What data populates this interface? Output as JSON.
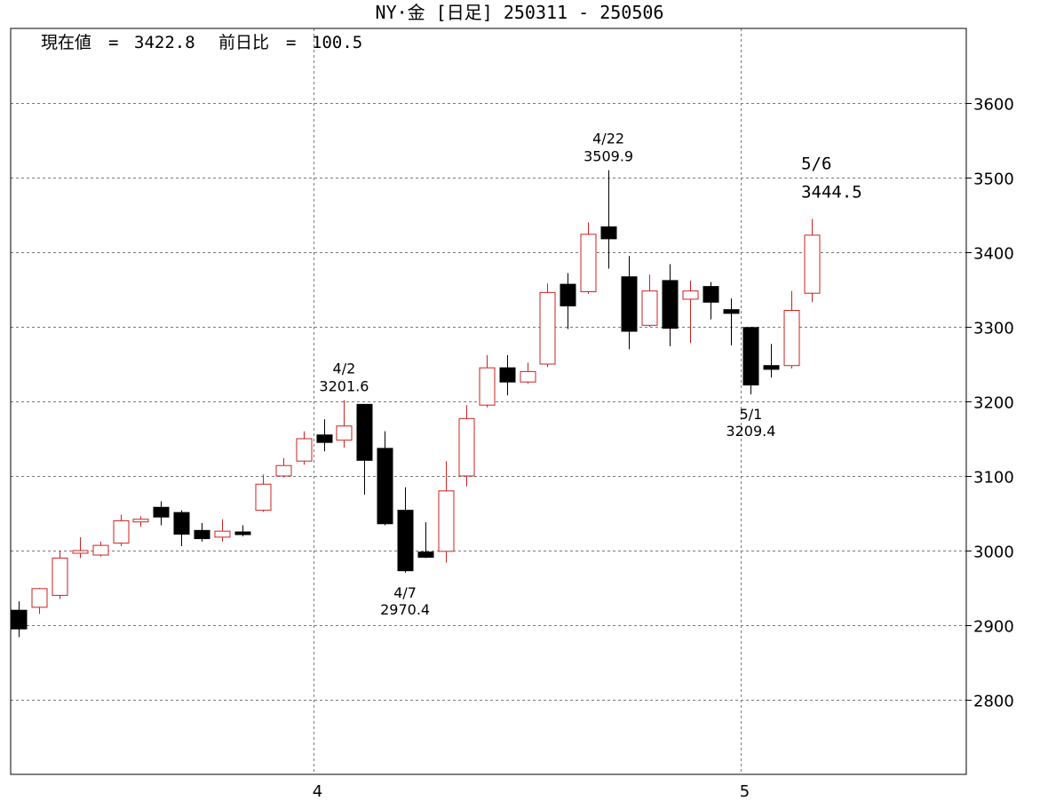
{
  "title": "NY·金 [日足] 250311 - 250506",
  "info": {
    "current_label": "現在値",
    "current_value": "3422.8",
    "change_label": "前日比",
    "change_value": "100.5"
  },
  "colors": {
    "up": "#cc2222",
    "down": "#000000",
    "grid": "#7a7a7a",
    "frame": "#000000"
  },
  "chart_data": {
    "type": "candlestick",
    "ylim": [
      2700,
      3700
    ],
    "y_ticks": [
      2800,
      2900,
      3000,
      3100,
      3200,
      3300,
      3400,
      3500,
      3600
    ],
    "x_tick_labels": [
      {
        "label": "4",
        "index": 15
      },
      {
        "label": "5",
        "index": 36
      }
    ],
    "candles": [
      {
        "o": 2920,
        "h": 2932,
        "l": 2884,
        "c": 2895
      },
      {
        "o": 2924,
        "h": 2950,
        "l": 2915,
        "c": 2949
      },
      {
        "o": 2940,
        "h": 3000,
        "l": 2935,
        "c": 2990
      },
      {
        "o": 2998,
        "h": 3018,
        "l": 2990,
        "c": 3000
      },
      {
        "o": 2994,
        "h": 3012,
        "l": 2992,
        "c": 3007
      },
      {
        "o": 3010,
        "h": 3048,
        "l": 3006,
        "c": 3040
      },
      {
        "o": 3040,
        "h": 3046,
        "l": 3032,
        "c": 3042
      },
      {
        "o": 3058,
        "h": 3066,
        "l": 3034,
        "c": 3045
      },
      {
        "o": 3051,
        "h": 3054,
        "l": 3006,
        "c": 3022
      },
      {
        "o": 3027,
        "h": 3037,
        "l": 3012,
        "c": 3016
      },
      {
        "o": 3018,
        "h": 3042,
        "l": 3012,
        "c": 3026
      },
      {
        "o": 3025,
        "h": 3034,
        "l": 3019,
        "c": 3023
      },
      {
        "o": 3054,
        "h": 3102,
        "l": 3052,
        "c": 3089
      },
      {
        "o": 3100,
        "h": 3124,
        "l": 3098,
        "c": 3114
      },
      {
        "o": 3120,
        "h": 3160,
        "l": 3115,
        "c": 3150
      },
      {
        "o": 3155,
        "h": 3176,
        "l": 3133,
        "c": 3145
      },
      {
        "o": 3148,
        "h": 3201.6,
        "l": 3138,
        "c": 3167
      },
      {
        "o": 3196,
        "h": 3196,
        "l": 3075,
        "c": 3121
      },
      {
        "o": 3137,
        "h": 3160,
        "l": 3034,
        "c": 3036
      },
      {
        "o": 3054,
        "h": 3085,
        "l": 2970.4,
        "c": 2973
      },
      {
        "o": 2998,
        "h": 3038,
        "l": 2990,
        "c": 2991
      },
      {
        "o": 2999,
        "h": 3120,
        "l": 2984,
        "c": 3080
      },
      {
        "o": 3100,
        "h": 3195,
        "l": 3086,
        "c": 3177
      },
      {
        "o": 3195,
        "h": 3262,
        "l": 3192,
        "c": 3245
      },
      {
        "o": 3245,
        "h": 3262,
        "l": 3208,
        "c": 3226
      },
      {
        "o": 3226,
        "h": 3252,
        "l": 3224,
        "c": 3240
      },
      {
        "o": 3250,
        "h": 3358,
        "l": 3246,
        "c": 3346
      },
      {
        "o": 3357,
        "h": 3372,
        "l": 3297,
        "c": 3328
      },
      {
        "o": 3347,
        "h": 3440,
        "l": 3344,
        "c": 3424
      },
      {
        "o": 3434,
        "h": 3509.9,
        "l": 3378,
        "c": 3418
      },
      {
        "o": 3367,
        "h": 3395,
        "l": 3270,
        "c": 3294
      },
      {
        "o": 3302,
        "h": 3370,
        "l": 3300,
        "c": 3348
      },
      {
        "o": 3362,
        "h": 3384,
        "l": 3274,
        "c": 3298
      },
      {
        "o": 3337,
        "h": 3362,
        "l": 3278,
        "c": 3348
      },
      {
        "o": 3354,
        "h": 3360,
        "l": 3310,
        "c": 3333
      },
      {
        "o": 3323,
        "h": 3338,
        "l": 3275,
        "c": 3318
      },
      {
        "o": 3299,
        "h": 3300,
        "l": 3209.4,
        "c": 3222
      },
      {
        "o": 3248,
        "h": 3277,
        "l": 3232,
        "c": 3243
      },
      {
        "o": 3248,
        "h": 3348,
        "l": 3244,
        "c": 3322
      },
      {
        "o": 3345,
        "h": 3444.5,
        "l": 3333,
        "c": 3422.8
      }
    ],
    "annotations": [
      {
        "index": 16,
        "date": "4/2",
        "value": "3201.6",
        "position": "above",
        "style": "small"
      },
      {
        "index": 19,
        "date": "4/7",
        "value": "2970.4",
        "position": "below",
        "style": "small"
      },
      {
        "index": 29,
        "date": "4/22",
        "value": "3509.9",
        "position": "above",
        "style": "small"
      },
      {
        "index": 36,
        "date": "5/1",
        "value": "3209.4",
        "position": "below",
        "style": "small"
      },
      {
        "index": 39,
        "date": "5/6",
        "value": "3444.5",
        "position": "above",
        "style": "large"
      }
    ]
  }
}
